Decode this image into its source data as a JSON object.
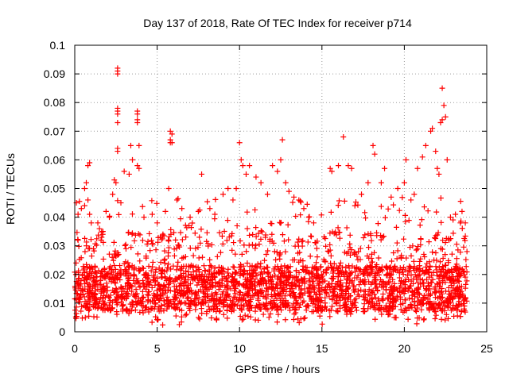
{
  "chart_data": {
    "type": "scatter",
    "title": "Day 137 of 2018, Rate Of TEC Index for receiver p714",
    "xlabel": "GPS time / hours",
    "ylabel": "ROTI / TECUs",
    "xlim": [
      0,
      25
    ],
    "ylim": [
      0,
      0.1
    ],
    "xticks": [
      "0",
      "5",
      "10",
      "15",
      "20",
      "25"
    ],
    "yticks": [
      "0",
      "0.01",
      "0.02",
      "0.03",
      "0.04",
      "0.05",
      "0.06",
      "0.07",
      "0.08",
      "0.09",
      "0.1"
    ],
    "grid": true,
    "marker": "+",
    "color": "#ff0000",
    "series": [
      {
        "points": [
          [
            0.1,
            0.045
          ],
          [
            0.2,
            0.041
          ],
          [
            0.4,
            0.043
          ],
          [
            0.6,
            0.044
          ],
          [
            0.8,
            0.046
          ],
          [
            0.9,
            0.041
          ],
          [
            0.7,
            0.03
          ],
          [
            1.0,
            0.038
          ],
          [
            0.2,
            0.032
          ],
          [
            0.6,
            0.05
          ],
          [
            0.7,
            0.052
          ],
          [
            0.8,
            0.058
          ],
          [
            0.9,
            0.059
          ],
          [
            1.4,
            0.038
          ],
          [
            1.5,
            0.036
          ],
          [
            1.7,
            0.034
          ],
          [
            1.9,
            0.042
          ],
          [
            2.1,
            0.04
          ],
          [
            2.3,
            0.048
          ],
          [
            2.4,
            0.053
          ],
          [
            2.5,
            0.052
          ],
          [
            2.6,
            0.064
          ],
          [
            2.6,
            0.063
          ],
          [
            2.6,
            0.073
          ],
          [
            2.6,
            0.076
          ],
          [
            2.6,
            0.077
          ],
          [
            2.6,
            0.078
          ],
          [
            2.6,
            0.09
          ],
          [
            2.6,
            0.091
          ],
          [
            2.6,
            0.092
          ],
          [
            2.8,
            0.045
          ],
          [
            3.0,
            0.056
          ],
          [
            3.3,
            0.055
          ],
          [
            3.4,
            0.065
          ],
          [
            3.5,
            0.06
          ],
          [
            3.8,
            0.073
          ],
          [
            3.8,
            0.074
          ],
          [
            3.8,
            0.076
          ],
          [
            3.8,
            0.077
          ],
          [
            3.8,
            0.058
          ],
          [
            3.9,
            0.057
          ],
          [
            3.9,
            0.065
          ],
          [
            4.2,
            0.04
          ],
          [
            4.7,
            0.041
          ],
          [
            5.0,
            0.038
          ],
          [
            5.5,
            0.042
          ],
          [
            5.8,
            0.067
          ],
          [
            5.8,
            0.066
          ],
          [
            5.8,
            0.07
          ],
          [
            5.9,
            0.069
          ],
          [
            5.9,
            0.066
          ],
          [
            5.7,
            0.05
          ],
          [
            6.2,
            0.046
          ],
          [
            6.5,
            0.043
          ],
          [
            7.0,
            0.04
          ],
          [
            7.5,
            0.042
          ],
          [
            7.7,
            0.055
          ],
          [
            8.2,
            0.043
          ],
          [
            8.5,
            0.041
          ],
          [
            9.0,
            0.048
          ],
          [
            9.3,
            0.05
          ],
          [
            9.6,
            0.046
          ],
          [
            9.8,
            0.05
          ],
          [
            10.0,
            0.066
          ],
          [
            10.1,
            0.06
          ],
          [
            10.2,
            0.058
          ],
          [
            10.4,
            0.055
          ],
          [
            10.6,
            0.058
          ],
          [
            11.0,
            0.054
          ],
          [
            11.3,
            0.052
          ],
          [
            11.7,
            0.048
          ],
          [
            12.0,
            0.058
          ],
          [
            12.3,
            0.056
          ],
          [
            12.6,
            0.067
          ],
          [
            12.5,
            0.06
          ],
          [
            12.8,
            0.052
          ],
          [
            13.0,
            0.049
          ],
          [
            13.3,
            0.047
          ],
          [
            13.6,
            0.046
          ],
          [
            13.9,
            0.043
          ],
          [
            14.2,
            0.04
          ],
          [
            14.5,
            0.038
          ],
          [
            15.5,
            0.057
          ],
          [
            15.6,
            0.056
          ],
          [
            16.0,
            0.058
          ],
          [
            16.3,
            0.068
          ],
          [
            16.6,
            0.058
          ],
          [
            16.8,
            0.057
          ],
          [
            17.0,
            0.044
          ],
          [
            17.4,
            0.048
          ],
          [
            17.8,
            0.052
          ],
          [
            18.1,
            0.065
          ],
          [
            18.2,
            0.062
          ],
          [
            18.6,
            0.052
          ],
          [
            18.8,
            0.057
          ],
          [
            19.2,
            0.047
          ],
          [
            19.6,
            0.05
          ],
          [
            20.0,
            0.052
          ],
          [
            20.1,
            0.06
          ],
          [
            20.4,
            0.046
          ],
          [
            20.6,
            0.048
          ],
          [
            20.8,
            0.057
          ],
          [
            21.1,
            0.061
          ],
          [
            21.3,
            0.065
          ],
          [
            21.6,
            0.07
          ],
          [
            21.7,
            0.071
          ],
          [
            21.9,
            0.063
          ],
          [
            22.0,
            0.057
          ],
          [
            22.1,
            0.055
          ],
          [
            22.2,
            0.073
          ],
          [
            22.3,
            0.074
          ],
          [
            22.3,
            0.085
          ],
          [
            22.4,
            0.079
          ],
          [
            22.5,
            0.075
          ],
          [
            22.6,
            0.06
          ],
          [
            22.8,
            0.04
          ],
          [
            23.1,
            0.041
          ],
          [
            23.4,
            0.038
          ],
          [
            23.5,
            0.042
          ],
          [
            23.7,
            0.038
          ],
          [
            23.8,
            0.028
          ]
        ]
      }
    ],
    "dense_band": {
      "x_range": [
        0,
        23.8
      ],
      "typical_min": 0.005,
      "typical_max": 0.035,
      "min": 0.002
    }
  }
}
